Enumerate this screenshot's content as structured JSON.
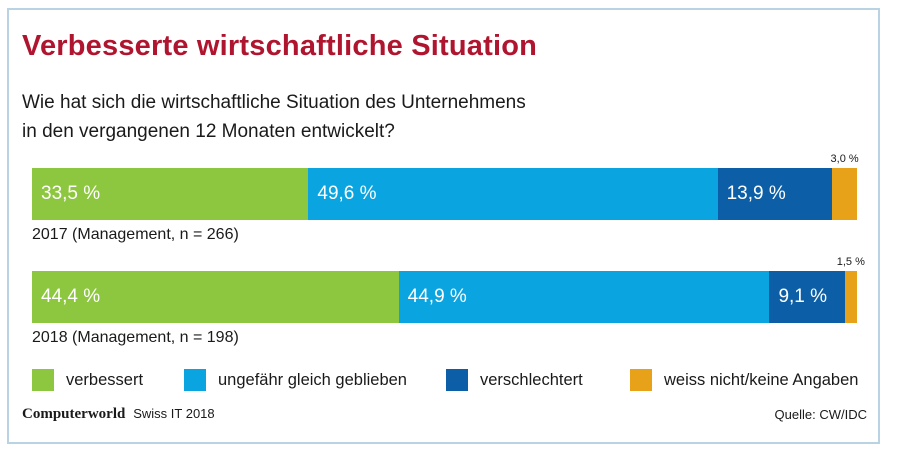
{
  "title": "Verbesserte wirtschaftliche Situation",
  "question": {
    "line1": "Wie hat sich die wirtschaftliche Situation des Unternehmens",
    "line2": "in den vergangenen 12 Monaten entwickelt?"
  },
  "colors": {
    "verbessert": "#8dc63f",
    "gleich": "#0aa5e0",
    "verschlechtert": "#0c5fa6",
    "keine_angaben": "#e8a21a",
    "title": "#b0152f",
    "frame": "#b9d3e2"
  },
  "chart_data": {
    "type": "bar",
    "orientation": "horizontal",
    "stacked": true,
    "categories": [
      "2017 (Management, n = 266)",
      "2018 (Management, n = 198)"
    ],
    "series": [
      {
        "name": "verbessert",
        "values": [
          33.5,
          44.4
        ],
        "labels": [
          "33,5 %",
          "44,4 %"
        ]
      },
      {
        "name": "ungefähr gleich geblieben",
        "values": [
          49.6,
          44.9
        ],
        "labels": [
          "49,6 %",
          "44,9 %"
        ]
      },
      {
        "name": "verschlechtert",
        "values": [
          13.9,
          9.1
        ],
        "labels": [
          "13,9 %",
          "9,1 %"
        ]
      },
      {
        "name": "weiss nicht/keine Angaben",
        "values": [
          3.0,
          1.5
        ],
        "labels": [
          "3,0 %",
          "1,5 %"
        ]
      }
    ],
    "xlim": [
      0,
      100
    ],
    "legend_position": "bottom"
  },
  "legend": {
    "items": [
      {
        "label": "verbessert",
        "color": "#8dc63f"
      },
      {
        "label": "ungefähr gleich geblieben",
        "color": "#0aa5e0"
      },
      {
        "label": "verschlechtert",
        "color": "#0c5fa6"
      },
      {
        "label": "weiss nicht/keine Angaben",
        "color": "#e8a21a"
      }
    ]
  },
  "footer": {
    "brand": "Computerworld",
    "edition": "Swiss IT 2018",
    "source": "Quelle: CW/IDC"
  }
}
